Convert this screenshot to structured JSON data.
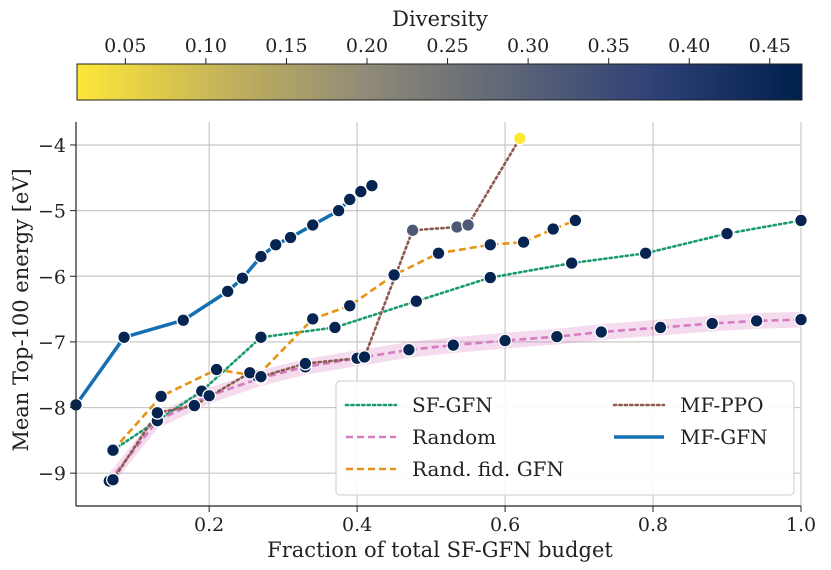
{
  "chart_data": {
    "type": "line",
    "xlabel": "Fraction of total SF-GFN budget",
    "ylabel": "Mean Top-100 energy [eV]",
    "xlim": [
      0.02,
      1.0
    ],
    "ylim": [
      -9.5,
      -3.65
    ],
    "xticks": [
      0.2,
      0.4,
      0.6,
      0.8,
      1.0
    ],
    "xtick_labels": [
      "0.2",
      "0.4",
      "0.6",
      "0.8",
      "1.0"
    ],
    "yticks": [
      -9,
      -8,
      -7,
      -6,
      -5,
      -4
    ],
    "ytick_labels": [
      "−9",
      "−8",
      "−7",
      "−6",
      "−5",
      "−4"
    ],
    "grid": true,
    "legend_position": "lower-right",
    "colorbar": {
      "label": "Diversity",
      "range": [
        0.02,
        0.47
      ],
      "ticks": [
        0.05,
        0.1,
        0.15,
        0.2,
        0.25,
        0.3,
        0.35,
        0.4,
        0.45
      ],
      "tick_labels": [
        "0.05",
        "0.10",
        "0.15",
        "0.20",
        "0.25",
        "0.30",
        "0.35",
        "0.40",
        "0.45"
      ],
      "colormap": "cividis-like",
      "stops": [
        "#fde737",
        "#c5b45a",
        "#8f8a77",
        "#5d6577",
        "#2d4076",
        "#00204d"
      ]
    },
    "series": [
      {
        "name": "SF-GFN",
        "color": "#1a9b6c",
        "style": "dotted",
        "x": [
          0.07,
          0.13,
          0.19,
          0.27,
          0.37,
          0.48,
          0.58,
          0.69,
          0.79,
          0.9,
          1.0
        ],
        "y": [
          -8.65,
          -8.2,
          -7.75,
          -6.93,
          -6.78,
          -6.38,
          -6.02,
          -5.8,
          -5.65,
          -5.35,
          -5.15
        ],
        "diversity": [
          0.46,
          0.46,
          0.46,
          0.46,
          0.46,
          0.46,
          0.46,
          0.46,
          0.46,
          0.46,
          0.46
        ]
      },
      {
        "name": "Random",
        "color": "#d67cc2",
        "style": "dashed",
        "band": 0.12,
        "x": [
          0.065,
          0.13,
          0.2,
          0.27,
          0.33,
          0.4,
          0.47,
          0.53,
          0.6,
          0.67,
          0.73,
          0.81,
          0.88,
          0.94,
          1.0
        ],
        "y": [
          -9.12,
          -8.2,
          -7.82,
          -7.55,
          -7.38,
          -7.25,
          -7.12,
          -7.05,
          -6.98,
          -6.92,
          -6.85,
          -6.78,
          -6.72,
          -6.68,
          -6.66
        ],
        "diversity": [
          0.46,
          0.46,
          0.46,
          0.46,
          0.46,
          0.46,
          0.46,
          0.46,
          0.46,
          0.46,
          0.46,
          0.46,
          0.46,
          0.46,
          0.46
        ]
      },
      {
        "name": "Rand. fid. GFN",
        "color": "#e69212",
        "style": "dashed",
        "x": [
          0.07,
          0.135,
          0.21,
          0.265,
          0.34,
          0.39,
          0.45,
          0.51,
          0.58,
          0.625,
          0.665,
          0.695
        ],
        "y": [
          -8.65,
          -7.83,
          -7.42,
          -7.52,
          -6.65,
          -6.45,
          -5.98,
          -5.65,
          -5.52,
          -5.48,
          -5.28,
          -5.15
        ],
        "diversity": [
          0.46,
          0.46,
          0.46,
          0.46,
          0.46,
          0.46,
          0.46,
          0.46,
          0.46,
          0.46,
          0.46,
          0.46
        ]
      },
      {
        "name": "MF-PPO",
        "color": "#8c5a4f",
        "style": "dotted",
        "x": [
          0.07,
          0.13,
          0.18,
          0.255,
          0.27,
          0.33,
          0.4,
          0.41,
          0.475,
          0.535,
          0.55,
          0.62
        ],
        "y": [
          -9.1,
          -8.08,
          -7.97,
          -7.47,
          -7.53,
          -7.33,
          -7.25,
          -7.23,
          -5.3,
          -5.25,
          -5.22,
          -3.9
        ],
        "diversity": [
          0.46,
          0.46,
          0.46,
          0.46,
          0.46,
          0.46,
          0.46,
          0.46,
          0.32,
          0.32,
          0.32,
          0.02
        ]
      },
      {
        "name": "MF-GFN",
        "color": "#1470b1",
        "style": "solid",
        "x": [
          0.02,
          0.085,
          0.165,
          0.225,
          0.245,
          0.27,
          0.29,
          0.31,
          0.34,
          0.375,
          0.39,
          0.405,
          0.42
        ],
        "y": [
          -7.96,
          -6.93,
          -6.67,
          -6.23,
          -6.03,
          -5.7,
          -5.52,
          -5.41,
          -5.22,
          -5.0,
          -4.83,
          -4.71,
          -4.62
        ],
        "diversity": [
          0.46,
          0.46,
          0.46,
          0.46,
          0.46,
          0.46,
          0.46,
          0.46,
          0.46,
          0.46,
          0.46,
          0.46,
          0.46
        ]
      }
    ]
  }
}
